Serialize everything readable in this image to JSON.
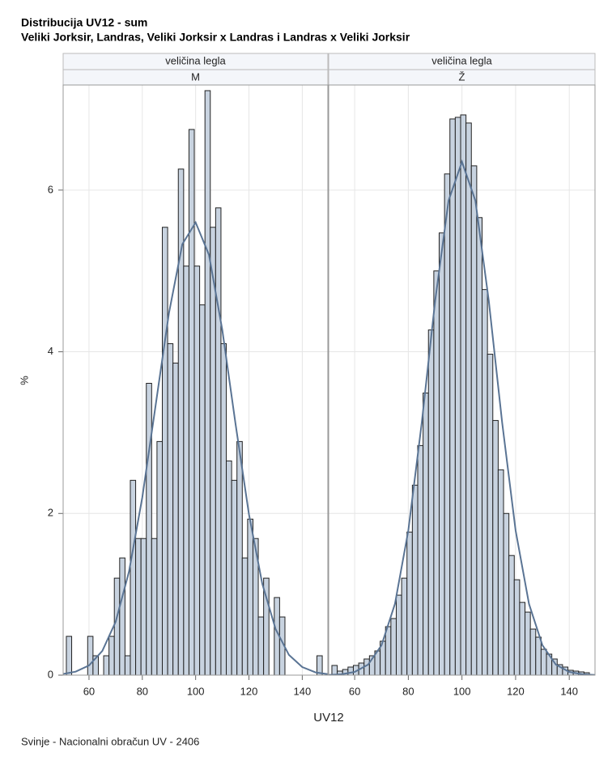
{
  "chart_data": {
    "type": "histogram",
    "title": "Distribucija UV12 - sum",
    "subtitle": "Veliki Jorksir, Landras, Veliki Jorksir x Landras i Landras x Veliki Jorksir",
    "xlabel": "UV12",
    "ylabel": "%",
    "footnote": "Svinje - Nacionalni obračun UV - 2406",
    "xlim": [
      50.3,
      149.6
    ],
    "xticks": [
      60,
      80,
      100,
      120,
      140
    ],
    "ylim": [
      0,
      7.3
    ],
    "yticks": [
      0,
      2,
      4,
      6
    ],
    "grid": true,
    "bar_color": "#c8d3e0",
    "curve_color": "#5a7494",
    "bins": [
      51.5,
      53.5,
      55.5,
      57.5,
      59.5,
      61.5,
      63.5,
      65.5,
      67.5,
      69.5,
      71.5,
      73.5,
      75.5,
      77.5,
      79.5,
      81.5,
      83.5,
      85.5,
      87.5,
      89.5,
      91.5,
      93.5,
      95.5,
      97.5,
      99.5,
      101.5,
      103.5,
      105.5,
      107.5,
      109.5,
      111.5,
      113.5,
      115.5,
      117.5,
      119.5,
      121.5,
      123.5,
      125.5,
      127.5,
      129.5,
      131.5,
      133.5,
      135.5,
      137.5,
      139.5,
      141.5,
      143.5,
      145.5,
      147.5
    ],
    "panels": [
      {
        "header": "veličina legla",
        "level": "M",
        "values": [
          0.48,
          0,
          0,
          0,
          0.48,
          0.24,
          0,
          0.24,
          0.48,
          1.2,
          1.45,
          0.24,
          2.41,
          1.69,
          1.69,
          3.61,
          1.69,
          2.89,
          5.54,
          4.1,
          3.86,
          6.26,
          5.06,
          6.75,
          5.06,
          4.58,
          7.23,
          5.54,
          5.78,
          4.1,
          2.65,
          2.41,
          2.89,
          1.45,
          1.93,
          1.69,
          0.72,
          1.2,
          0,
          0.96,
          0.72,
          0,
          0,
          0,
          0,
          0,
          0,
          0.24
        ],
        "curve": {
          "x": [
            50,
            55,
            60,
            65,
            70,
            75,
            80,
            85,
            90,
            95,
            100,
            105,
            110,
            115,
            120,
            125,
            130,
            135,
            140,
            145,
            150
          ],
          "values": [
            0.013,
            0.043,
            0.12,
            0.3,
            0.66,
            1.28,
            2.2,
            3.34,
            4.48,
            5.33,
            5.6,
            5.2,
            4.27,
            3.1,
            1.99,
            1.13,
            0.57,
            0.25,
            0.1,
            0.034,
            0.01
          ]
        }
      },
      {
        "header": "veličina legla",
        "level": "Ž",
        "values": [
          0.12,
          0.05,
          0.07,
          0.1,
          0.12,
          0.15,
          0.2,
          0.24,
          0.3,
          0.42,
          0.6,
          0.7,
          0.99,
          1.2,
          1.77,
          2.35,
          2.84,
          3.49,
          4.27,
          5.0,
          5.47,
          6.2,
          6.88,
          6.9,
          6.93,
          6.83,
          6.3,
          5.66,
          4.77,
          3.97,
          3.15,
          2.54,
          2.0,
          1.48,
          1.18,
          0.9,
          0.78,
          0.57,
          0.47,
          0.32,
          0.26,
          0.2,
          0.13,
          0.1,
          0.06,
          0.05,
          0.04,
          0.03
        ],
        "curve": {
          "x": [
            50,
            55,
            60,
            65,
            70,
            75,
            80,
            85,
            90,
            95,
            100,
            105,
            110,
            115,
            120,
            125,
            130,
            135,
            140,
            145,
            150
          ],
          "values": [
            0.002,
            0.01,
            0.04,
            0.13,
            0.37,
            0.88,
            1.79,
            3.12,
            4.63,
            5.87,
            6.35,
            5.87,
            4.63,
            3.12,
            1.79,
            0.88,
            0.37,
            0.13,
            0.04,
            0.01,
            0.002
          ]
        }
      }
    ]
  }
}
